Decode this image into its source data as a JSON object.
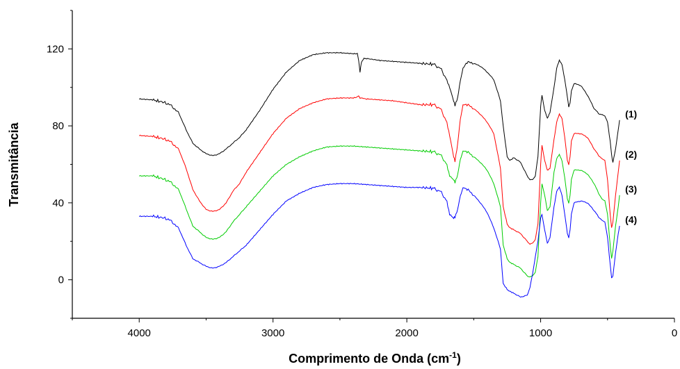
{
  "chart_data": {
    "type": "line",
    "xlabel": "Comprimento de Onda (cm",
    "xlabel_sup": "-1",
    "xlabel_end": ")",
    "ylabel": "Transmitância",
    "xlim": [
      4500,
      0
    ],
    "ylim": [
      -20,
      140
    ],
    "x_reversed": true,
    "xticks": [
      4000,
      3000,
      2000,
      1000,
      0
    ],
    "xtick_labels": [
      "4000",
      "3000",
      "2000",
      "1000",
      "0"
    ],
    "yticks": [
      0,
      40,
      80,
      120
    ],
    "ytick_labels": [
      "0",
      "40",
      "80",
      "120"
    ],
    "grid": false,
    "legend": "none",
    "series": [
      {
        "name": "(1)",
        "color": "#000000",
        "x": [
          4000,
          3900,
          3800,
          3750,
          3700,
          3650,
          3600,
          3550,
          3500,
          3450,
          3400,
          3350,
          3300,
          3250,
          3200,
          3100,
          3000,
          2900,
          2800,
          2700,
          2600,
          2500,
          2400,
          2370,
          2360,
          2350,
          2340,
          2320,
          2300,
          2200,
          2100,
          2000,
          1900,
          1800,
          1750,
          1700,
          1680,
          1650,
          1640,
          1620,
          1600,
          1580,
          1550,
          1500,
          1450,
          1400,
          1350,
          1300,
          1280,
          1250,
          1230,
          1200,
          1150,
          1100,
          1080,
          1060,
          1040,
          1020,
          1000,
          990,
          970,
          950,
          930,
          900,
          880,
          860,
          840,
          820,
          800,
          790,
          780,
          770,
          750,
          700,
          650,
          600,
          560,
          540,
          520,
          500,
          480,
          470,
          460,
          440,
          420,
          410
        ],
        "y": [
          94,
          93.5,
          92,
          90,
          86,
          78,
          71,
          68,
          65.5,
          64.5,
          65.5,
          68,
          71,
          74,
          78,
          88,
          99,
          108,
          114,
          117,
          118,
          118,
          117.5,
          117.5,
          114,
          108,
          113,
          115,
          115,
          114,
          113.5,
          113,
          112.5,
          112,
          110,
          104,
          100,
          93,
          91,
          94,
          104,
          110,
          113,
          112.5,
          111,
          108,
          104,
          93,
          80,
          64,
          62,
          63.5,
          61,
          54,
          52,
          52,
          54,
          64,
          90,
          96,
          88,
          84,
          87,
          100,
          110,
          114,
          112,
          104,
          95,
          90,
          92,
          98,
          102,
          101,
          96,
          89,
          86,
          86,
          85,
          82,
          72,
          65,
          61,
          68,
          78,
          83
        ]
      },
      {
        "name": "(2)",
        "color": "#ff0000",
        "x": [
          4000,
          3900,
          3800,
          3750,
          3700,
          3650,
          3600,
          3550,
          3500,
          3450,
          3400,
          3350,
          3300,
          3250,
          3200,
          3100,
          3000,
          2900,
          2800,
          2700,
          2600,
          2500,
          2400,
          2370,
          2360,
          2350,
          2300,
          2200,
          2100,
          2000,
          1900,
          1800,
          1750,
          1700,
          1680,
          1650,
          1640,
          1620,
          1600,
          1580,
          1550,
          1500,
          1450,
          1400,
          1350,
          1300,
          1280,
          1250,
          1230,
          1200,
          1150,
          1100,
          1080,
          1060,
          1040,
          1020,
          1000,
          990,
          970,
          950,
          930,
          900,
          880,
          860,
          840,
          820,
          800,
          790,
          780,
          770,
          750,
          700,
          650,
          600,
          560,
          540,
          520,
          500,
          480,
          470,
          460,
          440,
          420,
          410
        ],
        "y": [
          75,
          74.5,
          73,
          71,
          67,
          58,
          47,
          41,
          36.5,
          35.5,
          36.5,
          40,
          46,
          50,
          56,
          66,
          76,
          84,
          89,
          92,
          94,
          94.5,
          94.5,
          95,
          95.5,
          94.5,
          94,
          93.5,
          93,
          92,
          91,
          91,
          89,
          82,
          75,
          64,
          62,
          70,
          84,
          91,
          91,
          89,
          86,
          82,
          76,
          58,
          38,
          29,
          27,
          26,
          24,
          20,
          18.5,
          19,
          21,
          29,
          60,
          70,
          62,
          57,
          58,
          73,
          82,
          86,
          84,
          74,
          62,
          60,
          64,
          72,
          76,
          76,
          74,
          68,
          64,
          63,
          62,
          52,
          34,
          27,
          30,
          44,
          56,
          62
        ]
      },
      {
        "name": "(3)",
        "color": "#00cc00",
        "x": [
          4000,
          3900,
          3800,
          3750,
          3700,
          3650,
          3600,
          3550,
          3500,
          3450,
          3400,
          3350,
          3300,
          3250,
          3200,
          3100,
          3000,
          2900,
          2800,
          2700,
          2600,
          2500,
          2400,
          2300,
          2200,
          2100,
          2000,
          1900,
          1800,
          1750,
          1700,
          1680,
          1650,
          1640,
          1620,
          1600,
          1580,
          1550,
          1500,
          1450,
          1400,
          1350,
          1300,
          1280,
          1250,
          1230,
          1200,
          1150,
          1100,
          1080,
          1060,
          1040,
          1020,
          1000,
          990,
          970,
          950,
          930,
          900,
          880,
          860,
          840,
          820,
          800,
          790,
          780,
          770,
          750,
          700,
          650,
          600,
          560,
          540,
          520,
          500,
          480,
          470,
          460,
          440,
          420,
          410
        ],
        "y": [
          54,
          54,
          52,
          50,
          46,
          37,
          28,
          25,
          22,
          21,
          22,
          25,
          30,
          34,
          38,
          46,
          54,
          60,
          64,
          67,
          69,
          69.5,
          69.5,
          69,
          68.5,
          68,
          67.5,
          67,
          66.5,
          65,
          60,
          54,
          52,
          51,
          54,
          63,
          67,
          66.5,
          64,
          61,
          57,
          50,
          38,
          18,
          11,
          9,
          8,
          6,
          2,
          1.5,
          2,
          4,
          12,
          40,
          50,
          44,
          36,
          38,
          56,
          63,
          65,
          62,
          53,
          42,
          40,
          44,
          52,
          57,
          57,
          55,
          50,
          44,
          42,
          41,
          34,
          18,
          11,
          15,
          28,
          38,
          44
        ]
      },
      {
        "name": "(4)",
        "color": "#0000ff",
        "x": [
          4000,
          3900,
          3800,
          3750,
          3700,
          3650,
          3600,
          3550,
          3500,
          3450,
          3400,
          3350,
          3300,
          3250,
          3200,
          3100,
          3000,
          2900,
          2800,
          2700,
          2600,
          2500,
          2400,
          2300,
          2200,
          2100,
          2000,
          1900,
          1800,
          1750,
          1700,
          1680,
          1650,
          1640,
          1620,
          1600,
          1580,
          1550,
          1500,
          1450,
          1400,
          1350,
          1300,
          1280,
          1250,
          1230,
          1200,
          1150,
          1100,
          1080,
          1060,
          1040,
          1020,
          1000,
          990,
          970,
          950,
          930,
          900,
          880,
          860,
          840,
          820,
          800,
          790,
          780,
          770,
          750,
          700,
          650,
          600,
          560,
          540,
          520,
          500,
          480,
          470,
          460,
          440,
          420,
          410
        ],
        "y": [
          33,
          33,
          32,
          30,
          26,
          18,
          11,
          9,
          7,
          6,
          7,
          9,
          12,
          15,
          18,
          26,
          34,
          41,
          45,
          48,
          49.5,
          50,
          50,
          49.5,
          49,
          48.5,
          48,
          48,
          47.5,
          46,
          41,
          34,
          32,
          33,
          36,
          44,
          48,
          47,
          44,
          40,
          35,
          27,
          16,
          -2,
          -5,
          -6,
          -7,
          -9,
          -8,
          -4,
          3,
          12,
          20,
          32,
          34,
          26,
          19,
          22,
          38,
          46,
          48,
          44,
          34,
          24,
          22,
          26,
          34,
          40,
          41,
          40,
          36,
          32,
          31,
          30,
          22,
          8,
          1,
          2,
          14,
          24,
          28
        ]
      }
    ]
  }
}
